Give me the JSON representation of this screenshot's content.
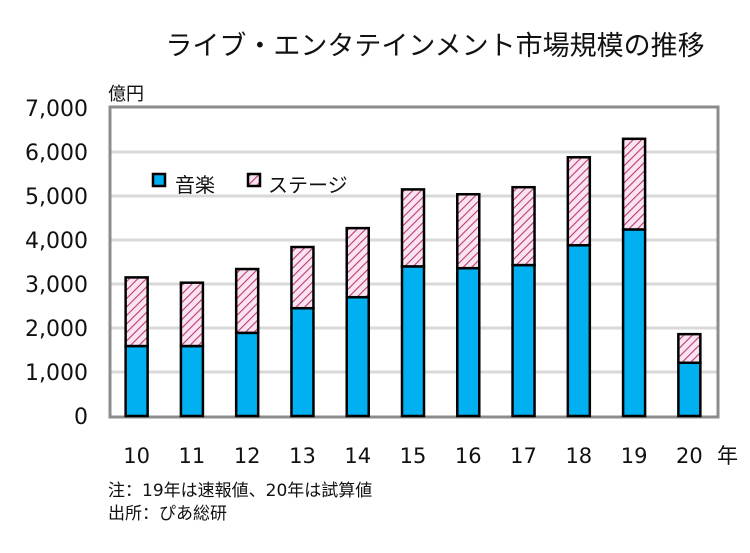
{
  "chart_data": {
    "type": "bar",
    "stacked": true,
    "title": "ライブ・エンタテインメント市場規模の推移",
    "ylabel": "億円",
    "xlabel": "年",
    "categories": [
      "10",
      "11",
      "12",
      "13",
      "14",
      "15",
      "16",
      "17",
      "18",
      "19",
      "20"
    ],
    "series": [
      {
        "name": "音楽",
        "color": "#00b0f0",
        "pattern": "solid",
        "values": [
          1590,
          1590,
          1890,
          2450,
          2700,
          3400,
          3360,
          3430,
          3880,
          4240,
          1210
        ]
      },
      {
        "name": "ステージ",
        "color": "#c0507a",
        "pattern": "diagonal-hatch",
        "values": [
          1560,
          1440,
          1450,
          1390,
          1570,
          1750,
          1680,
          1770,
          2000,
          2060,
          650
        ]
      }
    ],
    "totals": [
      3150,
      3030,
      3340,
      3840,
      4270,
      5150,
      5040,
      5200,
      5880,
      6300,
      1860
    ],
    "ylim": [
      0,
      7000
    ],
    "yticks": [
      0,
      1000,
      2000,
      3000,
      4000,
      5000,
      6000,
      7000
    ],
    "ytick_labels": [
      "0",
      "1,000",
      "2,000",
      "3,000",
      "4,000",
      "5,000",
      "6,000",
      "7,000"
    ],
    "grid": true,
    "legend_position": "upper-left inside plot"
  },
  "notes": {
    "note1": "注：19年は速報値、20年は試算値",
    "note2": "出所：ぴあ総研"
  }
}
